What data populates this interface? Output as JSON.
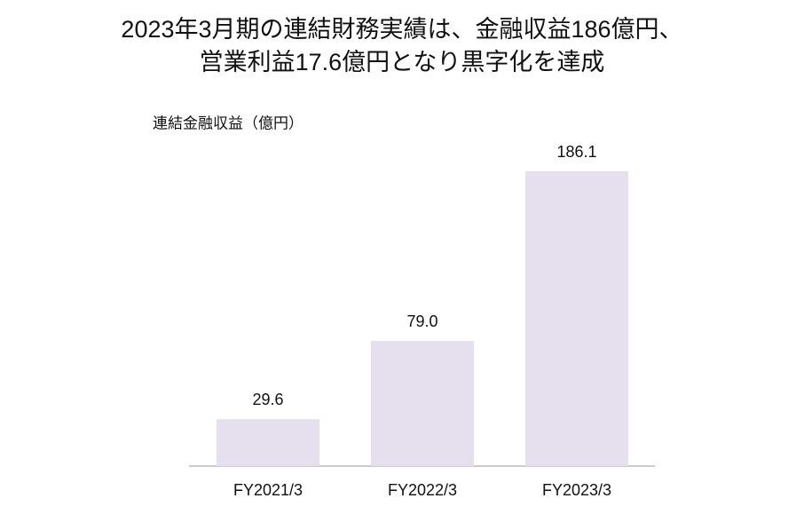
{
  "chart_data": {
    "type": "bar",
    "title": [
      "2023年3月期の連結財務実績は、金融収益186億円、",
      "営業利益17.6億円となり黒字化を達成"
    ],
    "y_label": "連結金融収益（億円）",
    "categories": [
      "FY2021/3",
      "FY2022/3",
      "FY2023/3"
    ],
    "values": [
      29.6,
      79.0,
      186.1
    ],
    "value_labels": [
      "29.6",
      "79.0",
      "186.1"
    ],
    "color": "#e6e0ee"
  }
}
